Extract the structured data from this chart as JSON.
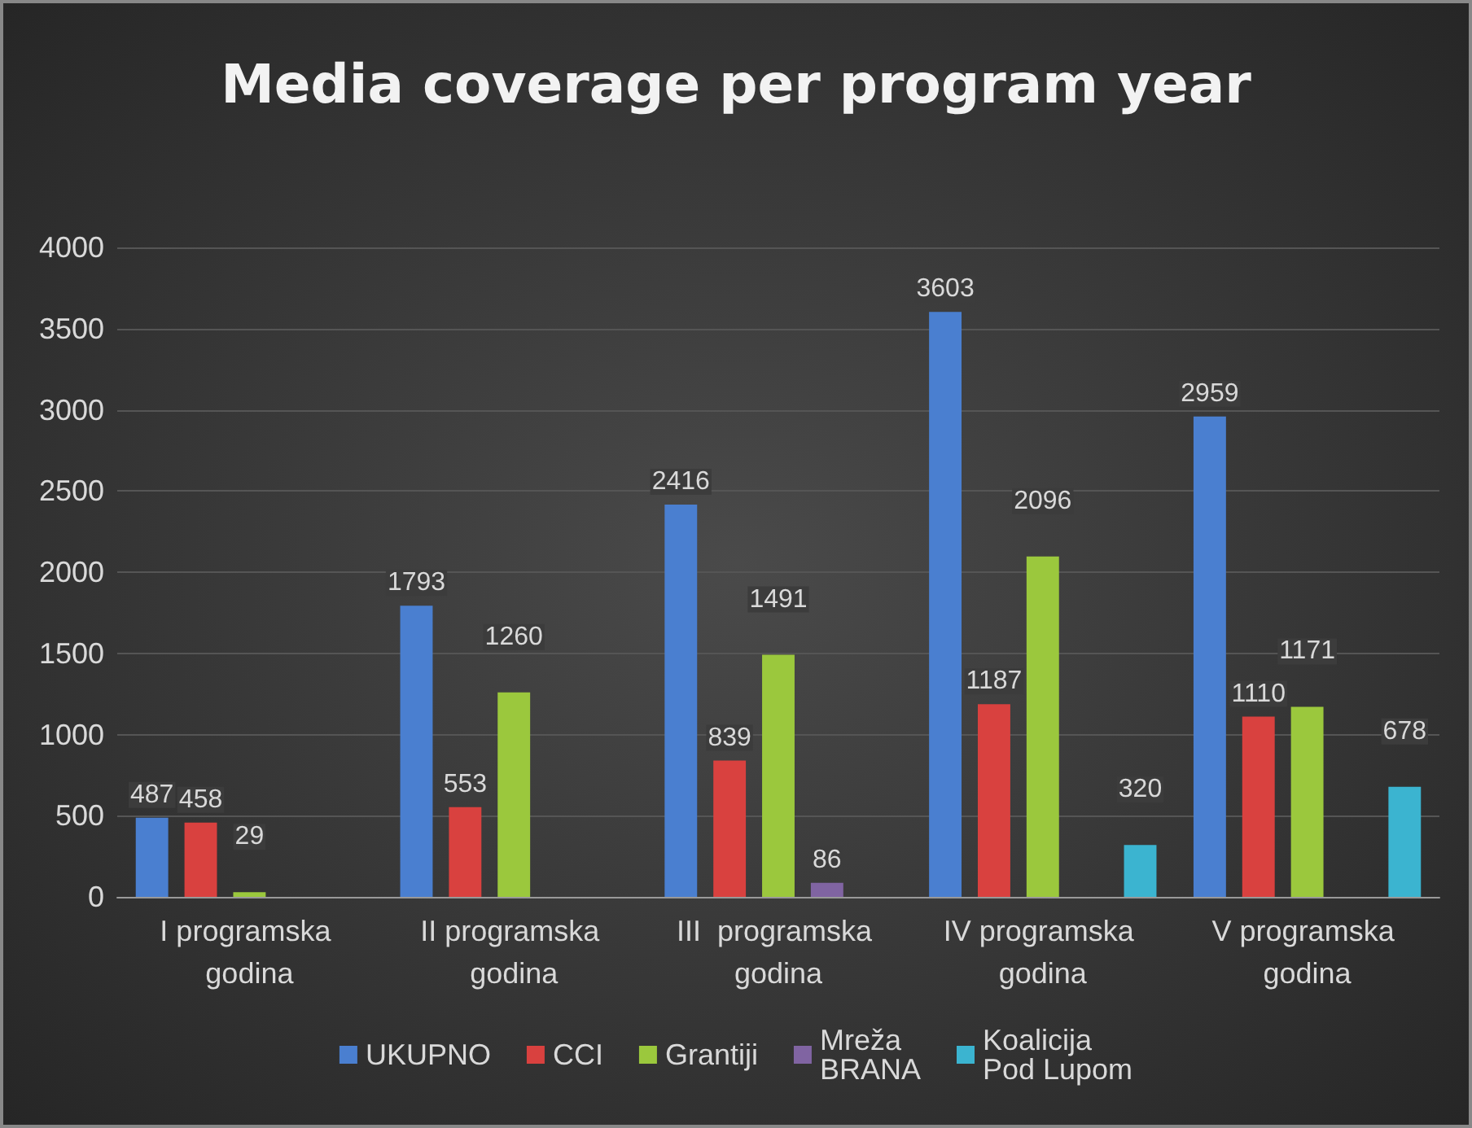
{
  "chart_data": {
    "type": "bar",
    "title": "Media coverage per program year",
    "categories": [
      "I programska godina",
      "II programska godina",
      "III  programska godina",
      "IV programska godina",
      "V programska godina"
    ],
    "series": [
      {
        "name": "UKUPNO",
        "color": "#4a7fd0",
        "values": [
          487,
          1793,
          2416,
          3603,
          2959
        ]
      },
      {
        "name": "CCI",
        "color": "#d9413f",
        "values": [
          458,
          553,
          839,
          1187,
          1110
        ]
      },
      {
        "name": "Grantiji",
        "color": "#9bc83d",
        "values": [
          29,
          1260,
          1491,
          2096,
          1171
        ]
      },
      {
        "name": "Mreža BRANA",
        "color": "#8064a2",
        "values": [
          null,
          null,
          86,
          null,
          null
        ]
      },
      {
        "name": "Koalicija Pod Lupom",
        "color": "#3bb4d0",
        "values": [
          null,
          null,
          null,
          320,
          678
        ]
      }
    ],
    "ylim": [
      0,
      4000
    ],
    "yticks": [
      0,
      500,
      1000,
      1500,
      2000,
      2500,
      3000,
      3500,
      4000
    ],
    "grid": "y",
    "legend": "bottom",
    "data_labels": true
  }
}
